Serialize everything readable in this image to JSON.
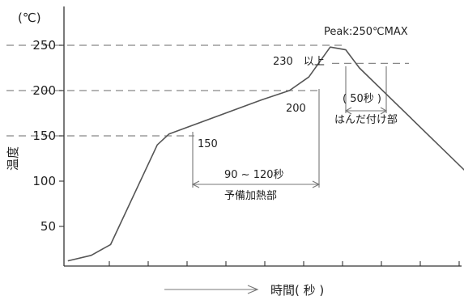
{
  "chart_data": {
    "type": "line",
    "y_unit": "(℃)",
    "ylabel": "温度",
    "xlabel": "時間( 秒 )",
    "y_ticks": [
      50,
      100,
      150,
      200,
      250
    ],
    "ylim": [
      0,
      275
    ],
    "x_tick_count": 11,
    "profile_points": [
      {
        "x": 0.1,
        "y": 12
      },
      {
        "x": 0.7,
        "y": 18
      },
      {
        "x": 1.2,
        "y": 30
      },
      {
        "x": 2.4,
        "y": 140
      },
      {
        "x": 2.7,
        "y": 152
      },
      {
        "x": 5.1,
        "y": 190
      },
      {
        "x": 5.8,
        "y": 200
      },
      {
        "x": 6.3,
        "y": 215
      },
      {
        "x": 6.85,
        "y": 248
      },
      {
        "x": 7.25,
        "y": 245
      },
      {
        "x": 7.6,
        "y": 225
      },
      {
        "x": 10.4,
        "y": 108
      }
    ],
    "annotations": {
      "peak": "Peak:250℃MAX",
      "above_230": "230　以上",
      "label_200": "200",
      "label_150": "150",
      "preheat_time": "90 ~ 120秒",
      "preheat_zone": "予備加熱部",
      "solder_time": "( 50秒 )",
      "solder_zone": "はんだ付け部"
    },
    "guides_at": [
      250,
      200,
      150,
      230
    ],
    "grid": false,
    "legend": "none"
  }
}
